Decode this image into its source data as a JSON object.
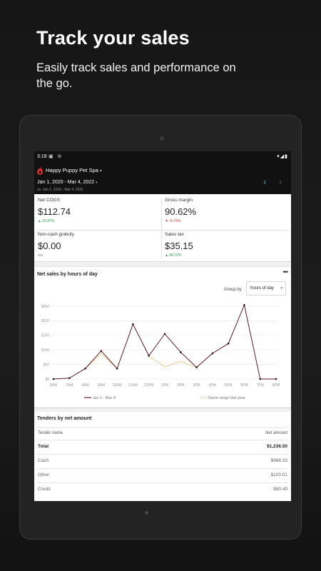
{
  "promo": {
    "title": "Track your sales",
    "subtitle": "Easily track sales and performance on the go."
  },
  "status_bar": {
    "time": "3:18",
    "icons": "▣ ⊚",
    "right_icons": "▾◢▮"
  },
  "header": {
    "business_name": "Happy Puppy Pet Spa",
    "caret": "▾",
    "date_range": "Jan 1, 2020 - Mar 4, 2022",
    "compare_range": "vs. Jan 1, 2019 - Mar 4, 2021",
    "prev": "‹",
    "next": "›"
  },
  "metrics": [
    {
      "label": "Net COGS",
      "value": "$112.74",
      "change": "▲ 23.97%",
      "trend": "up"
    },
    {
      "label": "Gross margin",
      "value": "90.62%",
      "change": "▼ -8.74%",
      "trend": "down"
    },
    {
      "label": "Non-cash gratuity",
      "value": "$0.00",
      "change": "n/a",
      "trend": "flat"
    },
    {
      "label": "Sales tax",
      "value": "$35.15",
      "change": "▲ 80.72%",
      "trend": "up"
    }
  ],
  "chart_card": {
    "title": "Net sales by hours of day",
    "more": "•••",
    "group_by_label": "Group by",
    "group_by_value": "hours of day",
    "select_caret": "▾",
    "legend_primary": "Jan 1 - Mar 4",
    "legend_secondary": "Same range last year"
  },
  "chart_data": {
    "type": "line",
    "categories": [
      "6AM",
      "7AM",
      "8AM",
      "9AM",
      "10AM",
      "11AM",
      "12PM",
      "1PM",
      "2PM",
      "3PM",
      "4PM",
      "5PM",
      "6PM",
      "7PM",
      "8PM"
    ],
    "y_ticks": [
      "$0",
      "$50",
      "$100",
      "$150",
      "$200",
      "$250"
    ],
    "ylim": [
      0,
      250
    ],
    "series": [
      {
        "name": "Jan 1 - Mar 4",
        "color": "#5b1a2a",
        "marker_color": "#2a0f14",
        "values": [
          0,
          3,
          36,
          96,
          36,
          188,
          80,
          155,
          92,
          40,
          88,
          122,
          254,
          0,
          0
        ]
      },
      {
        "name": "Same range last year",
        "color": "#d8a938",
        "values": [
          null,
          null,
          null,
          86,
          null,
          null,
          78,
          42,
          60,
          40,
          null,
          null,
          null,
          null,
          null
        ]
      }
    ],
    "grid": true,
    "legend": "bottom"
  },
  "tenders": {
    "title": "Tenders by net amount",
    "columns": [
      "Tender name",
      "Net amount"
    ],
    "rows": [
      {
        "name": "Total",
        "amount": "$1,236.50"
      },
      {
        "name": "Cash",
        "amount": "$968.33"
      },
      {
        "name": "Other",
        "amount": "$100.01"
      },
      {
        "name": "Credit",
        "amount": "$80.49"
      }
    ]
  },
  "colors": {
    "accent": "#2fa2b6",
    "brand_red": "#d32f2f",
    "positive": "#2e9b53",
    "negative": "#d23a3a"
  }
}
